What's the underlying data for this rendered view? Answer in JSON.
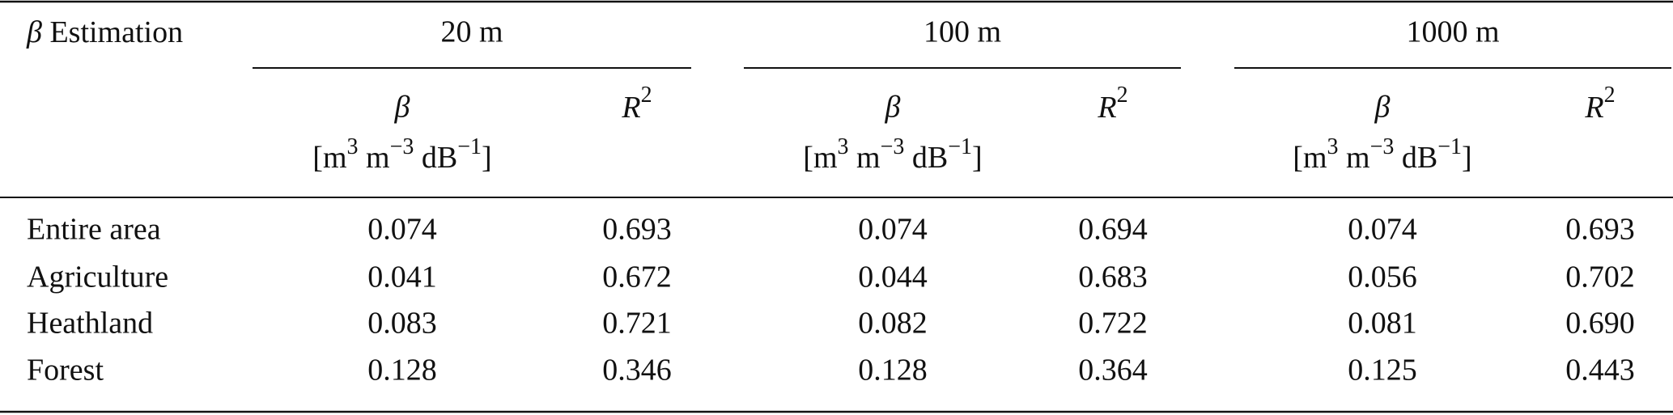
{
  "table": {
    "corner": {
      "symbol": "β",
      "text": "Estimation"
    },
    "groups": [
      "20 m",
      "100 m",
      "1000 m"
    ],
    "beta_header": {
      "symbol": "β",
      "unit": [
        "[m",
        "3",
        " m",
        "−3",
        " dB",
        "−1",
        "]"
      ]
    },
    "r2_header": {
      "base": "R",
      "exp": "2"
    },
    "rows": [
      [
        "Entire area",
        "0.074",
        "0.693",
        "0.074",
        "0.694",
        "0.074",
        "0.693"
      ],
      [
        "Agriculture",
        "0.041",
        "0.672",
        "0.044",
        "0.683",
        "0.056",
        "0.702"
      ],
      [
        "Heathland",
        "0.083",
        "0.721",
        "0.082",
        "0.722",
        "0.081",
        "0.690"
      ],
      [
        "Forest",
        "0.128",
        "0.346",
        "0.128",
        "0.364",
        "0.125",
        "0.443"
      ]
    ]
  }
}
